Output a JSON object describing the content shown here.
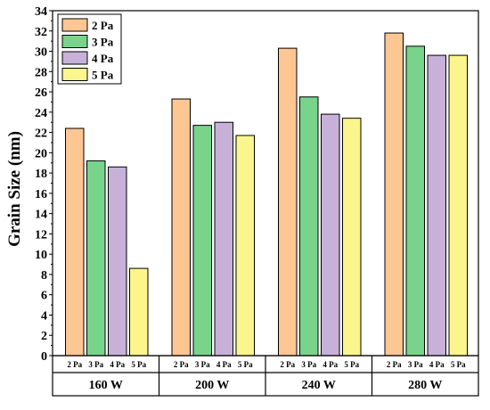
{
  "chart_data": {
    "type": "bar",
    "title": "",
    "xlabel": "",
    "ylabel": "Grain Size (nm)",
    "ylim": [
      0,
      34
    ],
    "yticks": [
      0,
      2,
      4,
      6,
      8,
      10,
      12,
      14,
      16,
      18,
      20,
      22,
      24,
      26,
      28,
      30,
      32,
      34
    ],
    "groups": [
      "160 W",
      "200 W",
      "240 W",
      "280 W"
    ],
    "categories": [
      "2 Pa",
      "3 Pa",
      "4 Pa",
      "5 Pa"
    ],
    "series": [
      {
        "name": "2 Pa",
        "color": "#FDC693",
        "values": [
          22.4,
          25.3,
          30.3,
          31.8
        ]
      },
      {
        "name": "3 Pa",
        "color": "#77D48A",
        "values": [
          19.2,
          22.7,
          25.5,
          30.5
        ]
      },
      {
        "name": "4 Pa",
        "color": "#C7B1D9",
        "values": [
          18.6,
          23.0,
          23.8,
          29.6
        ]
      },
      {
        "name": "5 Pa",
        "color": "#FAF58C",
        "values": [
          8.6,
          21.7,
          23.4,
          29.6
        ]
      }
    ],
    "legend_position": "top-left",
    "grid": false
  }
}
